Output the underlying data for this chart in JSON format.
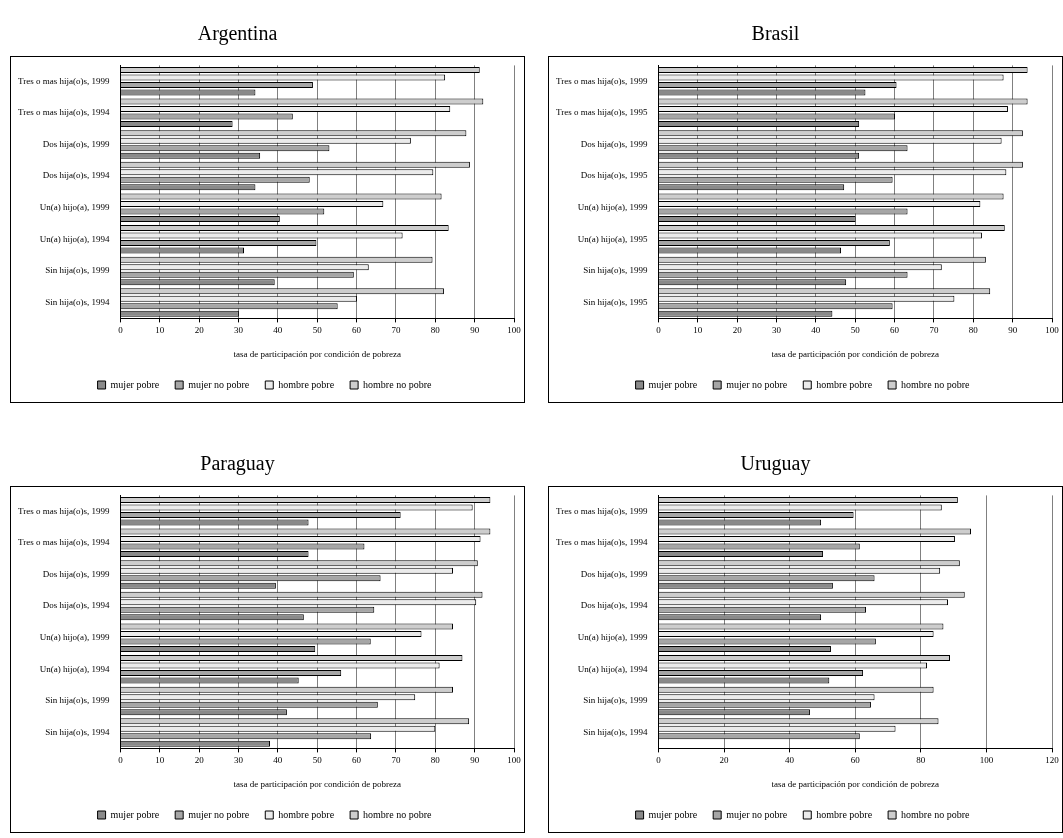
{
  "chart_data": [
    {
      "type": "bar",
      "orientation": "horizontal",
      "title": "Argentina",
      "xlabel": "tasa de participación por condición de pobreza",
      "categories": [
        "Tres o mas hija(o)s, 1999",
        "Tres o mas hija(o)s, 1994",
        "Dos hija(o)s, 1999",
        "Dos hija(o)s, 1994",
        "Un(a) hijo(a), 1999",
        "Un(a) hijo(a), 1994",
        "Sin hija(o)s, 1999",
        "Sin hija(o)s, 1994"
      ],
      "series": [
        {
          "name": "mujer pobre",
          "color": "#8a8a8a",
          "values": [
            34.3,
            28.5,
            35.5,
            34.3,
            40.5,
            31.4,
            39.2,
            30.1
          ]
        },
        {
          "name": "mujer no pobre",
          "color": "#a6a6a6",
          "values": [
            48.9,
            43.8,
            53.1,
            48.1,
            51.8,
            49.8,
            59.3,
            55.2
          ]
        },
        {
          "name": "hombre pobre",
          "color": "#ebebeb",
          "values": [
            82.5,
            83.8,
            73.8,
            79.5,
            66.8,
            71.7,
            63.1,
            60.1
          ]
        },
        {
          "name": "hombre no pobre",
          "color": "#cdcdcd",
          "values": [
            91.3,
            92.2,
            87.9,
            88.8,
            81.6,
            83.4,
            79.3,
            82.2
          ]
        }
      ],
      "xlim": [
        0,
        100
      ],
      "xticks": [
        0,
        10,
        20,
        30,
        40,
        50,
        60,
        70,
        80,
        90,
        100
      ],
      "grid": "x",
      "legend": "bottom"
    },
    {
      "type": "bar",
      "orientation": "horizontal",
      "title": "Brasil",
      "xlabel": "tasa de participación por condición de pobreza",
      "categories": [
        "Tres o mas hija(o)s, 1999",
        "Tres o mas hija(o)s, 1995",
        "Dos hija(o)s, 1999",
        "Dos hija(o)s, 1995",
        "Un(a) hijo(a), 1999",
        "Un(a) hijo(a), 1995",
        "Sin hija(o)s, 1999",
        "Sin hija(o)s, 1995"
      ],
      "series": [
        {
          "name": "mujer pobre",
          "color": "#8a8a8a",
          "values": [
            52.6,
            51.0,
            51.0,
            47.2,
            50.1,
            46.4,
            47.7,
            44.2
          ]
        },
        {
          "name": "mujer no pobre",
          "color": "#a6a6a6",
          "values": [
            60.5,
            60.1,
            63.3,
            59.5,
            63.3,
            58.8,
            63.3,
            59.5
          ]
        },
        {
          "name": "hombre pobre",
          "color": "#ebebeb",
          "values": [
            87.7,
            88.8,
            87.2,
            88.4,
            81.8,
            82.2,
            72.0,
            75.2
          ]
        },
        {
          "name": "hombre no pobre",
          "color": "#cdcdcd",
          "values": [
            93.8,
            93.8,
            92.6,
            92.6,
            87.7,
            88.0,
            83.2,
            84.3
          ]
        }
      ],
      "xlim": [
        0,
        100
      ],
      "xticks": [
        0,
        10,
        20,
        30,
        40,
        50,
        60,
        70,
        80,
        90,
        100
      ],
      "grid": "x",
      "legend": "bottom"
    },
    {
      "type": "bar",
      "orientation": "horizontal",
      "title": "Paraguay",
      "xlabel": "tasa de participación por condición de pobreza",
      "categories": [
        "Tres o mas hija(o)s, 1999",
        "Tres o mas hija(o)s, 1994",
        "Dos hija(o)s, 1999",
        "Dos hija(o)s, 1994",
        "Un(a) hijo(a), 1999",
        "Un(a) hijo(a), 1994",
        "Sin hija(o)s, 1999",
        "Sin hija(o)s, 1994"
      ],
      "series": [
        {
          "name": "mujer pobre",
          "color": "#8a8a8a",
          "values": [
            47.8,
            47.8,
            39.5,
            46.6,
            49.5,
            45.3,
            42.3,
            38.0
          ]
        },
        {
          "name": "mujer no pobre",
          "color": "#a6a6a6",
          "values": [
            71.2,
            62.0,
            66.1,
            64.5,
            63.6,
            56.1,
            65.4,
            63.7
          ]
        },
        {
          "name": "hombre pobre",
          "color": "#ebebeb",
          "values": [
            89.5,
            91.5,
            84.5,
            90.4,
            76.5,
            81.1,
            74.9,
            80.0
          ]
        },
        {
          "name": "hombre no pobre",
          "color": "#cdcdcd",
          "values": [
            94.0,
            94.0,
            90.8,
            92.0,
            84.5,
            86.9,
            84.5,
            88.6
          ]
        }
      ],
      "xlim": [
        0,
        100
      ],
      "xticks": [
        0,
        10,
        20,
        30,
        40,
        50,
        60,
        70,
        80,
        90,
        100
      ],
      "grid": "x",
      "legend": "bottom"
    },
    {
      "type": "bar",
      "orientation": "horizontal",
      "title": "Uruguay",
      "xlabel": "tasa de participación por condición de pobreza",
      "categories": [
        "Tres o mas hija(o)s, 1999",
        "Tres o mas hija(o)s, 1994",
        "Dos hija(o)s, 1999",
        "Dos hija(o)s, 1994",
        "Un(a) hijo(a), 1999",
        "Un(a) hijo(a), 1994",
        "Sin hija(o)s, 1999",
        "Sin hija(o)s, 1994"
      ],
      "series": [
        {
          "name": "mujer pobre",
          "color": "#8a8a8a",
          "values": [
            49.6,
            50.2,
            53.2,
            49.6,
            52.6,
            52.1,
            46.2,
            null
          ]
        },
        {
          "name": "mujer no pobre",
          "color": "#a6a6a6",
          "values": [
            59.5,
            61.4,
            65.9,
            63.3,
            66.3,
            62.4,
            64.8,
            61.4
          ]
        },
        {
          "name": "hombre pobre",
          "color": "#ebebeb",
          "values": [
            86.4,
            90.4,
            85.9,
            88.3,
            83.9,
            81.9,
            65.9,
            72.3
          ]
        },
        {
          "name": "hombre no pobre",
          "color": "#cdcdcd",
          "values": [
            91.3,
            95.3,
            91.9,
            93.4,
            86.9,
            88.9,
            83.9,
            85.4
          ]
        }
      ],
      "xlim": [
        0,
        120
      ],
      "xticks": [
        0,
        20,
        40,
        60,
        80,
        100,
        120
      ],
      "grid": "x",
      "legend": "bottom"
    }
  ]
}
